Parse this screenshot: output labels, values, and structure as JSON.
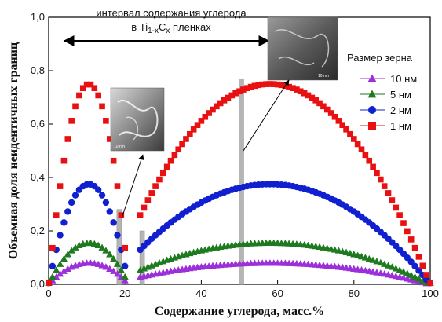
{
  "chart_data": {
    "type": "scatter",
    "title": "",
    "xlabel": "Содержание углерода, масс.%",
    "ylabel": "Объемная доля неидентичных границ",
    "xlim": [
      0,
      100
    ],
    "ylim": [
      0,
      1.0
    ],
    "xticks": [
      "0",
      "20",
      "40",
      "60",
      "80",
      "100"
    ],
    "yticks": [
      "0,0",
      "0,2",
      "0,4",
      "0,6",
      "0,8",
      "1,0"
    ],
    "legend_title": "Размер зерна",
    "legend_position": "right",
    "series": [
      {
        "name": "10 нм",
        "marker": "triangle",
        "color": "#9b30d9",
        "peak": 0.08
      },
      {
        "name": "5 нм",
        "marker": "triangle",
        "color": "#1e7a1e",
        "peak": 0.155
      },
      {
        "name": "2 нм",
        "marker": "circle",
        "color": "#1020d0",
        "peak": 0.375
      },
      {
        "name": "1 нм",
        "marker": "square",
        "color": "#e81010",
        "peak": 0.75
      }
    ],
    "segments": [
      {
        "x_start": 0,
        "x_end": 20,
        "peak_x": 10.5,
        "step": 1
      },
      {
        "x_start": 24,
        "x_end": 100,
        "peak_x": 58,
        "step": 1
      }
    ],
    "annotations": {
      "interval_line1": "интервал содержания углерода",
      "interval_line2_prefix": "в Ti",
      "interval_sub1": "1-x",
      "interval_mid": "C",
      "interval_sub2": "x",
      "interval_suffix": " пленках"
    },
    "highlight_bars": [
      {
        "x": 18.5,
        "height": 0.28
      },
      {
        "x": 24.5,
        "height": 0.2
      },
      {
        "x": 50.5,
        "height": 0.77
      }
    ],
    "inset_labels": [
      "10 nm",
      "10 nm"
    ]
  }
}
